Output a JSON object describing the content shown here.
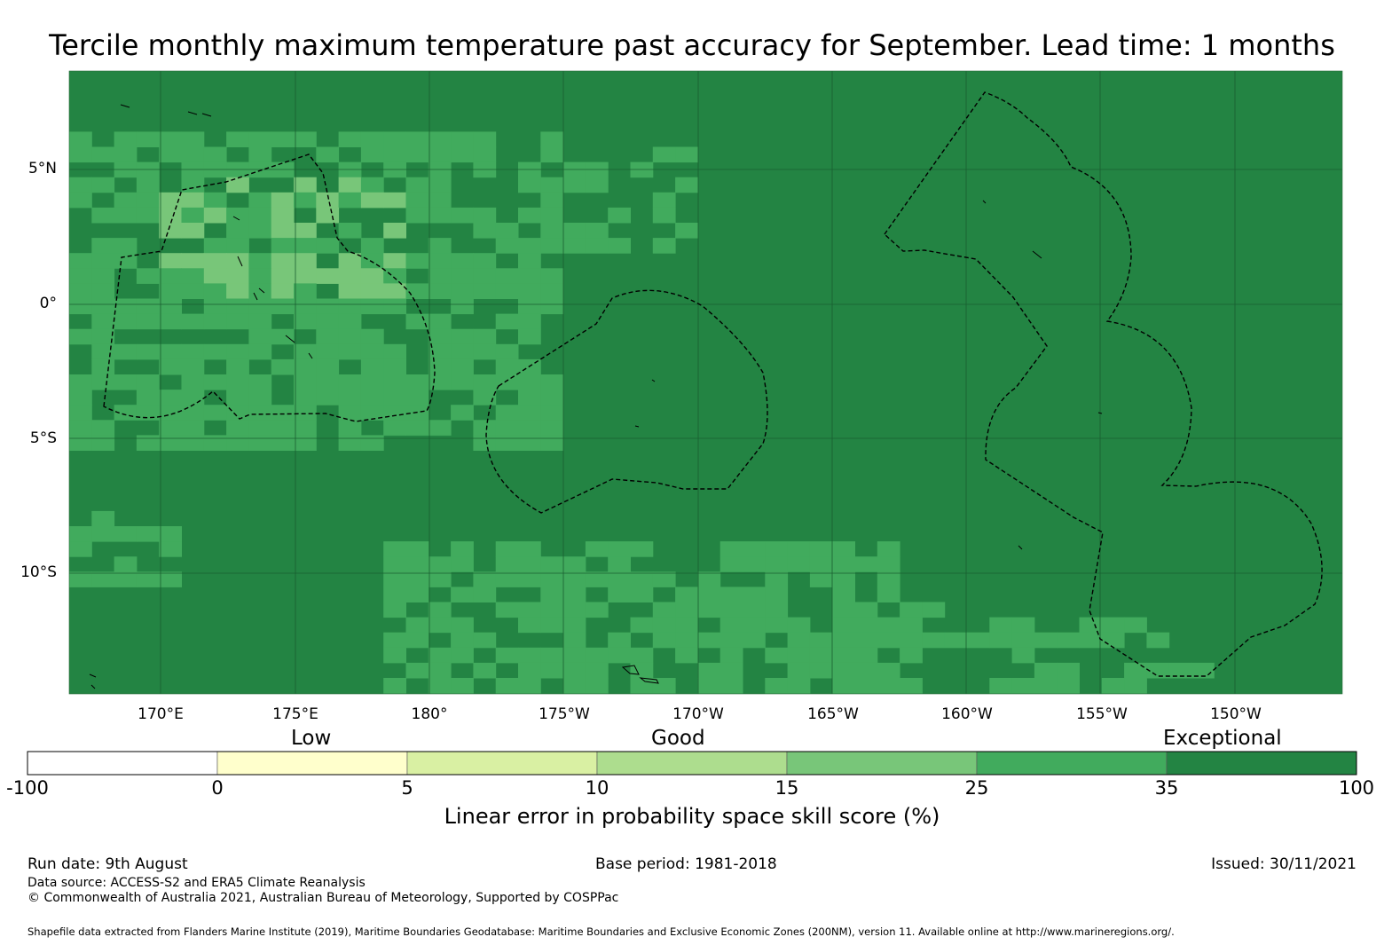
{
  "title": "Tercile monthly maximum temperature past accuracy for September. Lead time: 1 months",
  "map": {
    "lat_labels": [
      "5°N",
      "0°",
      "5°S",
      "10°S"
    ],
    "lon_labels": [
      "170°E",
      "175°E",
      "180°",
      "175°W",
      "170°W",
      "165°W",
      "160°W",
      "155°W",
      "150°W"
    ],
    "colors": {
      "exceptional": "#238443",
      "good_high": "#41ab5d",
      "good_mid": "#78c679",
      "good_low": "#addd8e",
      "grid": "#1a5e30",
      "boundary": "#000000"
    }
  },
  "category_labels": {
    "low": "Low",
    "good": "Good",
    "exceptional": "Exceptional"
  },
  "colorbar": {
    "ticks": [
      "-100",
      "0",
      "5",
      "10",
      "15",
      "25",
      "35",
      "100"
    ],
    "colors": [
      "#ffffff",
      "#ffffcc",
      "#d9f0a3",
      "#addd8e",
      "#78c679",
      "#41ab5d",
      "#238443"
    ],
    "label": "Linear error in probability space skill score (%)"
  },
  "footer": {
    "run_date": "Run date: 9th August",
    "base_period": "Base period: 1981-2018",
    "issued": "Issued: 30/11/2021",
    "data_source": "Data source: ACCESS-S2 and ERA5 Climate Reanalysis",
    "copyright": "© Commonwealth of Australia 2021, Australian Bureau of Meteorology, Supported by COSPPac",
    "shapefile": "Shapefile data extracted from Flanders Marine Institute (2019), Maritime Boundaries Geodatabase: Maritime Boundaries and Exclusive Economic Zones (200NM), version 11. Available online at http://www.marineregions.org/."
  }
}
